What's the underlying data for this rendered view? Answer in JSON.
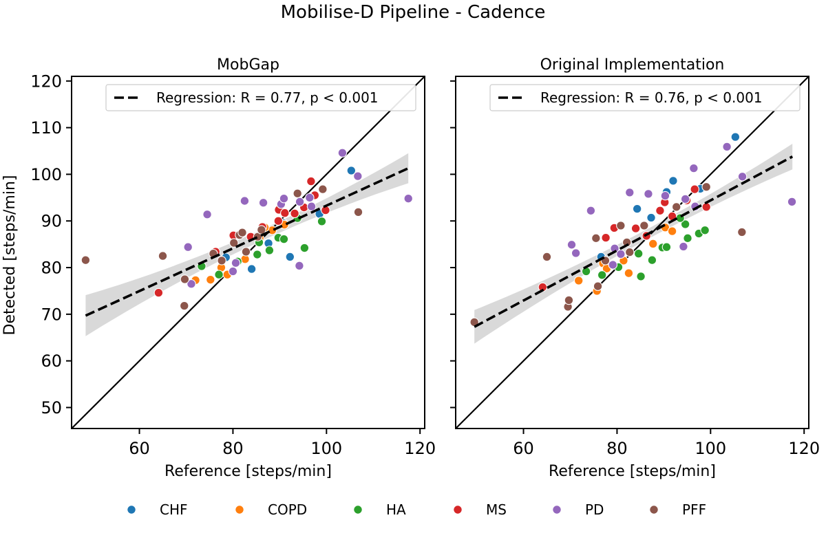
{
  "suptitle": "Mobilise-D Pipeline - Cadence",
  "colors": {
    "CHF": "#1f77b4",
    "COPD": "#ff7f0e",
    "HA": "#2ca02c",
    "MS": "#d62728",
    "PD": "#9467bd",
    "PFF": "#8c564b",
    "regression_line": "#000000",
    "confidence_band": "#d9d9d9",
    "identity_line": "#000000"
  },
  "legend": {
    "placement": "bottom-center",
    "items": [
      {
        "label": "CHF",
        "color": "#1f77b4"
      },
      {
        "label": "COPD",
        "color": "#ff7f0e"
      },
      {
        "label": "HA",
        "color": "#2ca02c"
      },
      {
        "label": "MS",
        "color": "#d62728"
      },
      {
        "label": "PD",
        "color": "#9467bd"
      },
      {
        "label": "PFF",
        "color": "#8c564b"
      }
    ]
  },
  "chart_data": [
    {
      "type": "scatter",
      "title": "MobGap",
      "xlabel": "Reference [steps/min]",
      "ylabel": "Detected [steps/min]",
      "xlim": [
        45.5,
        121
      ],
      "ylim": [
        45.5,
        121
      ],
      "xticks": [
        60,
        80,
        100,
        120
      ],
      "yticks": [
        50,
        60,
        70,
        80,
        90,
        100,
        110,
        120
      ],
      "identity_line": true,
      "regression": {
        "label": "Regression: R = 0.77, p < 0.001",
        "x_range": [
          48.5,
          117.5
        ],
        "y_start": 69.7,
        "y_end": 101.3,
        "ci_halfwidth_ends": 4.4,
        "ci_halfwidth_center": 1.2,
        "ci_center_x": 87
      },
      "points": [
        {
          "x": 105.3,
          "y": 100.8,
          "g": "CHF"
        },
        {
          "x": 92.2,
          "y": 82.3,
          "g": "CHF"
        },
        {
          "x": 84.0,
          "y": 79.7,
          "g": "CHF"
        },
        {
          "x": 87.6,
          "y": 85.2,
          "g": "CHF"
        },
        {
          "x": 98.5,
          "y": 91.5,
          "g": "CHF"
        },
        {
          "x": 78.5,
          "y": 82.2,
          "g": "CHF"
        },
        {
          "x": 90.8,
          "y": 89.5,
          "g": "CHF"
        },
        {
          "x": 72.0,
          "y": 77.3,
          "g": "COPD"
        },
        {
          "x": 75.2,
          "y": 77.4,
          "g": "COPD"
        },
        {
          "x": 78.8,
          "y": 78.5,
          "g": "COPD"
        },
        {
          "x": 82.6,
          "y": 81.8,
          "g": "COPD"
        },
        {
          "x": 85.7,
          "y": 86.3,
          "g": "COPD"
        },
        {
          "x": 88.4,
          "y": 88.0,
          "g": "COPD"
        },
        {
          "x": 77.5,
          "y": 80.0,
          "g": "COPD"
        },
        {
          "x": 86.8,
          "y": 88.6,
          "g": "COPD"
        },
        {
          "x": 91.0,
          "y": 89.2,
          "g": "COPD"
        },
        {
          "x": 73.3,
          "y": 80.3,
          "g": "HA"
        },
        {
          "x": 77.0,
          "y": 78.5,
          "g": "HA"
        },
        {
          "x": 81.0,
          "y": 81.3,
          "g": "HA"
        },
        {
          "x": 85.2,
          "y": 82.8,
          "g": "HA"
        },
        {
          "x": 87.8,
          "y": 83.7,
          "g": "HA"
        },
        {
          "x": 89.7,
          "y": 86.4,
          "g": "HA"
        },
        {
          "x": 90.9,
          "y": 86.1,
          "g": "HA"
        },
        {
          "x": 95.3,
          "y": 84.2,
          "g": "HA"
        },
        {
          "x": 99.0,
          "y": 89.9,
          "g": "HA"
        },
        {
          "x": 93.8,
          "y": 90.6,
          "g": "HA"
        },
        {
          "x": 85.6,
          "y": 85.4,
          "g": "HA"
        },
        {
          "x": 64.1,
          "y": 74.6,
          "g": "MS"
        },
        {
          "x": 76.3,
          "y": 83.4,
          "g": "MS"
        },
        {
          "x": 80.1,
          "y": 86.9,
          "g": "MS"
        },
        {
          "x": 83.8,
          "y": 86.6,
          "g": "MS"
        },
        {
          "x": 86.3,
          "y": 88.7,
          "g": "MS"
        },
        {
          "x": 89.8,
          "y": 92.4,
          "g": "MS"
        },
        {
          "x": 91.1,
          "y": 91.7,
          "g": "MS"
        },
        {
          "x": 93.2,
          "y": 91.6,
          "g": "MS"
        },
        {
          "x": 95.2,
          "y": 92.9,
          "g": "MS"
        },
        {
          "x": 96.7,
          "y": 98.5,
          "g": "MS"
        },
        {
          "x": 99.8,
          "y": 92.3,
          "g": "MS"
        },
        {
          "x": 97.5,
          "y": 95.5,
          "g": "MS"
        },
        {
          "x": 89.7,
          "y": 90.0,
          "g": "MS"
        },
        {
          "x": 70.4,
          "y": 84.4,
          "g": "PD"
        },
        {
          "x": 74.5,
          "y": 91.4,
          "g": "PD"
        },
        {
          "x": 71.1,
          "y": 76.5,
          "g": "PD"
        },
        {
          "x": 80.0,
          "y": 79.2,
          "g": "PD"
        },
        {
          "x": 80.6,
          "y": 81.0,
          "g": "PD"
        },
        {
          "x": 82.5,
          "y": 94.3,
          "g": "PD"
        },
        {
          "x": 86.5,
          "y": 93.9,
          "g": "PD"
        },
        {
          "x": 90.3,
          "y": 93.6,
          "g": "PD"
        },
        {
          "x": 90.9,
          "y": 94.8,
          "g": "PD"
        },
        {
          "x": 94.2,
          "y": 80.4,
          "g": "PD"
        },
        {
          "x": 94.3,
          "y": 94.1,
          "g": "PD"
        },
        {
          "x": 96.4,
          "y": 95.0,
          "g": "PD"
        },
        {
          "x": 96.8,
          "y": 93.1,
          "g": "PD"
        },
        {
          "x": 103.4,
          "y": 104.6,
          "g": "PD"
        },
        {
          "x": 106.7,
          "y": 99.6,
          "g": "PD"
        },
        {
          "x": 117.5,
          "y": 94.8,
          "g": "PD"
        },
        {
          "x": 48.5,
          "y": 81.6,
          "g": "PFF"
        },
        {
          "x": 65.0,
          "y": 82.5,
          "g": "PFF"
        },
        {
          "x": 69.6,
          "y": 71.8,
          "g": "PFF"
        },
        {
          "x": 69.7,
          "y": 77.5,
          "g": "PFF"
        },
        {
          "x": 75.8,
          "y": 83.0,
          "g": "PFF"
        },
        {
          "x": 77.6,
          "y": 81.5,
          "g": "PFF"
        },
        {
          "x": 80.2,
          "y": 85.3,
          "g": "PFF"
        },
        {
          "x": 81.4,
          "y": 87.0,
          "g": "PFF"
        },
        {
          "x": 82.0,
          "y": 87.5,
          "g": "PFF"
        },
        {
          "x": 82.8,
          "y": 83.4,
          "g": "PFF"
        },
        {
          "x": 85.3,
          "y": 86.6,
          "g": "PFF"
        },
        {
          "x": 86.1,
          "y": 88.1,
          "g": "PFF"
        },
        {
          "x": 93.8,
          "y": 95.9,
          "g": "PFF"
        },
        {
          "x": 99.2,
          "y": 96.8,
          "g": "PFF"
        },
        {
          "x": 106.8,
          "y": 91.9,
          "g": "PFF"
        }
      ]
    },
    {
      "type": "scatter",
      "title": "Original Implementation",
      "xlabel": "Reference [steps/min]",
      "ylabel": "",
      "xlim": [
        45.5,
        121
      ],
      "ylim": [
        45.5,
        121
      ],
      "xticks": [
        60,
        80,
        100,
        120
      ],
      "yticks": [
        50,
        60,
        70,
        80,
        90,
        100,
        110,
        120
      ],
      "identity_line": true,
      "regression": {
        "label": "Regression: R = 0.76, p < 0.001",
        "x_range": [
          49.5,
          117.5
        ],
        "y_start": 67.3,
        "y_end": 103.8,
        "ci_halfwidth_ends": 3.6,
        "ci_halfwidth_center": 1.1,
        "ci_center_x": 87
      },
      "points": [
        {
          "x": 105.3,
          "y": 108.0,
          "g": "CHF"
        },
        {
          "x": 92.0,
          "y": 98.6,
          "g": "CHF"
        },
        {
          "x": 90.6,
          "y": 96.2,
          "g": "CHF"
        },
        {
          "x": 84.3,
          "y": 92.6,
          "g": "CHF"
        },
        {
          "x": 87.3,
          "y": 90.7,
          "g": "CHF"
        },
        {
          "x": 76.6,
          "y": 82.3,
          "g": "CHF"
        },
        {
          "x": 97.8,
          "y": 96.9,
          "g": "CHF"
        },
        {
          "x": 71.8,
          "y": 77.2,
          "g": "COPD"
        },
        {
          "x": 75.7,
          "y": 75.0,
          "g": "COPD"
        },
        {
          "x": 77.0,
          "y": 80.9,
          "g": "COPD"
        },
        {
          "x": 77.8,
          "y": 79.8,
          "g": "COPD"
        },
        {
          "x": 82.5,
          "y": 78.8,
          "g": "COPD"
        },
        {
          "x": 81.4,
          "y": 81.5,
          "g": "COPD"
        },
        {
          "x": 87.7,
          "y": 85.1,
          "g": "COPD"
        },
        {
          "x": 90.3,
          "y": 88.6,
          "g": "COPD"
        },
        {
          "x": 91.8,
          "y": 87.8,
          "g": "COPD"
        },
        {
          "x": 73.4,
          "y": 79.2,
          "g": "HA"
        },
        {
          "x": 76.8,
          "y": 78.4,
          "g": "HA"
        },
        {
          "x": 80.3,
          "y": 80.1,
          "g": "HA"
        },
        {
          "x": 84.6,
          "y": 83.0,
          "g": "HA"
        },
        {
          "x": 85.1,
          "y": 78.1,
          "g": "HA"
        },
        {
          "x": 87.5,
          "y": 81.6,
          "g": "HA"
        },
        {
          "x": 89.7,
          "y": 84.3,
          "g": "HA"
        },
        {
          "x": 90.6,
          "y": 84.4,
          "g": "HA"
        },
        {
          "x": 94.6,
          "y": 89.3,
          "g": "HA"
        },
        {
          "x": 95.1,
          "y": 86.3,
          "g": "HA"
        },
        {
          "x": 97.5,
          "y": 87.3,
          "g": "HA"
        },
        {
          "x": 98.8,
          "y": 88.0,
          "g": "HA"
        },
        {
          "x": 93.5,
          "y": 90.6,
          "g": "HA"
        },
        {
          "x": 64.1,
          "y": 75.8,
          "g": "MS"
        },
        {
          "x": 77.6,
          "y": 86.4,
          "g": "MS"
        },
        {
          "x": 79.4,
          "y": 88.5,
          "g": "MS"
        },
        {
          "x": 84.0,
          "y": 88.4,
          "g": "MS"
        },
        {
          "x": 86.3,
          "y": 86.8,
          "g": "MS"
        },
        {
          "x": 89.2,
          "y": 92.2,
          "g": "MS"
        },
        {
          "x": 91.8,
          "y": 91.0,
          "g": "MS"
        },
        {
          "x": 94.9,
          "y": 94.4,
          "g": "MS"
        },
        {
          "x": 96.6,
          "y": 96.8,
          "g": "MS"
        },
        {
          "x": 99.1,
          "y": 93.0,
          "g": "MS"
        },
        {
          "x": 90.2,
          "y": 94.0,
          "g": "MS"
        },
        {
          "x": 70.3,
          "y": 84.9,
          "g": "PD"
        },
        {
          "x": 71.2,
          "y": 83.1,
          "g": "PD"
        },
        {
          "x": 74.4,
          "y": 92.2,
          "g": "PD"
        },
        {
          "x": 79.1,
          "y": 80.6,
          "g": "PD"
        },
        {
          "x": 79.5,
          "y": 84.1,
          "g": "PD"
        },
        {
          "x": 82.7,
          "y": 96.1,
          "g": "PD"
        },
        {
          "x": 86.7,
          "y": 95.8,
          "g": "PD"
        },
        {
          "x": 90.3,
          "y": 95.4,
          "g": "PD"
        },
        {
          "x": 94.2,
          "y": 84.5,
          "g": "PD"
        },
        {
          "x": 94.6,
          "y": 94.7,
          "g": "PD"
        },
        {
          "x": 96.4,
          "y": 101.3,
          "g": "PD"
        },
        {
          "x": 96.7,
          "y": 93.1,
          "g": "PD"
        },
        {
          "x": 103.5,
          "y": 105.9,
          "g": "PD"
        },
        {
          "x": 106.8,
          "y": 99.5,
          "g": "PD"
        },
        {
          "x": 117.4,
          "y": 94.1,
          "g": "PD"
        },
        {
          "x": 80.8,
          "y": 82.9,
          "g": "PD"
        },
        {
          "x": 49.5,
          "y": 68.3,
          "g": "PFF"
        },
        {
          "x": 65.0,
          "y": 82.3,
          "g": "PFF"
        },
        {
          "x": 69.5,
          "y": 71.6,
          "g": "PFF"
        },
        {
          "x": 69.7,
          "y": 73.0,
          "g": "PFF"
        },
        {
          "x": 75.5,
          "y": 86.3,
          "g": "PFF"
        },
        {
          "x": 75.9,
          "y": 76.0,
          "g": "PFF"
        },
        {
          "x": 80.8,
          "y": 89.0,
          "g": "PFF"
        },
        {
          "x": 82.1,
          "y": 85.4,
          "g": "PFF"
        },
        {
          "x": 82.7,
          "y": 83.3,
          "g": "PFF"
        },
        {
          "x": 85.8,
          "y": 89.0,
          "g": "PFF"
        },
        {
          "x": 92.7,
          "y": 93.0,
          "g": "PFF"
        },
        {
          "x": 99.1,
          "y": 97.3,
          "g": "PFF"
        },
        {
          "x": 106.7,
          "y": 87.6,
          "g": "PFF"
        },
        {
          "x": 77.5,
          "y": 81.5,
          "g": "PFF"
        }
      ]
    }
  ]
}
